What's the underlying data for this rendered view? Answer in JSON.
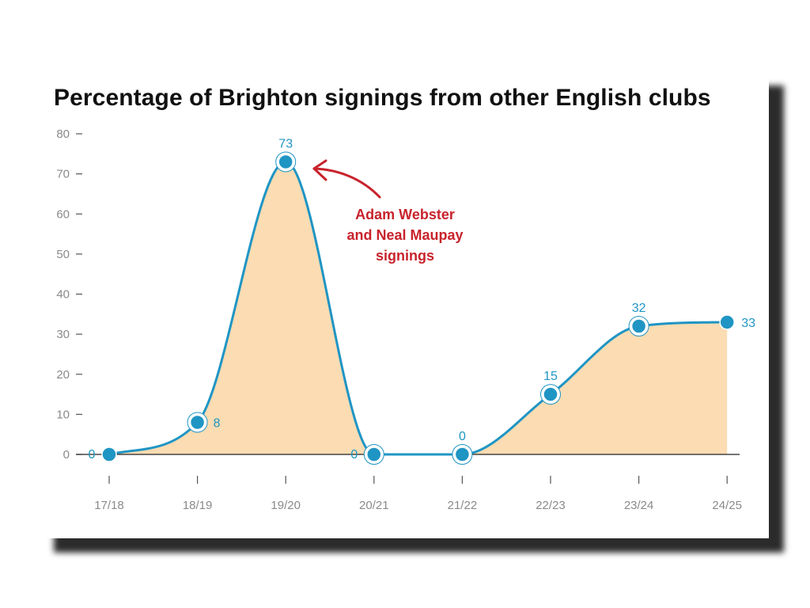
{
  "chart_data": {
    "type": "area",
    "title": "Percentage of Brighton signings from other English clubs",
    "categories": [
      "17/18",
      "18/19",
      "19/20",
      "20/21",
      "21/22",
      "22/23",
      "23/24",
      "24/25"
    ],
    "series": [
      {
        "values": [
          0,
          8,
          73,
          0,
          0,
          15,
          32,
          33
        ]
      }
    ],
    "ylim": [
      0,
      80
    ],
    "yticks": [
      0,
      10,
      20,
      30,
      40,
      50,
      60,
      70,
      80
    ],
    "grid": false,
    "annotations": [
      {
        "text_lines": [
          "Adam Webster",
          "and Neal Maupay",
          "signings"
        ],
        "points_to": "19/20"
      }
    ],
    "colors": {
      "line": "#1f95c4",
      "fill": "#fbdcb3",
      "annotation": "#c8232c"
    }
  }
}
